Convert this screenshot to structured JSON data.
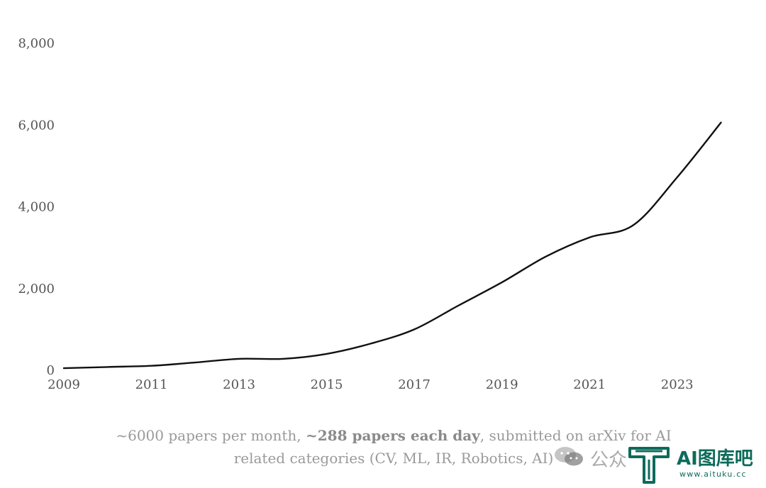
{
  "chart_data": {
    "type": "line",
    "x_ticks": [
      "2009",
      "2011",
      "2013",
      "2015",
      "2017",
      "2019",
      "2021",
      "2023"
    ],
    "y_ticks": [
      "0",
      "2,000",
      "4,000",
      "6,000",
      "8,000"
    ],
    "xlim": [
      2009,
      2024.3
    ],
    "ylim": [
      0,
      8000
    ],
    "grid": false,
    "series": [
      {
        "color": "#111111",
        "points": [
          [
            2009,
            50
          ],
          [
            2010,
            80
          ],
          [
            2011,
            110
          ],
          [
            2012,
            190
          ],
          [
            2013,
            280
          ],
          [
            2014,
            280
          ],
          [
            2015,
            400
          ],
          [
            2016,
            650
          ],
          [
            2017,
            1000
          ],
          [
            2018,
            1580
          ],
          [
            2019,
            2150
          ],
          [
            2020,
            2780
          ],
          [
            2021,
            3250
          ],
          [
            2022,
            3550
          ],
          [
            2023,
            4720
          ],
          [
            2024,
            6060
          ]
        ]
      }
    ]
  },
  "caption": {
    "part1": "~6000 papers per month, ",
    "bold": "~288 papers each day",
    "part2": ", submitted on arXiv for AI related categories (CV, ML, IR, Robotics, AI)"
  },
  "watermark": {
    "text": "公众",
    "brand": "AI图库吧",
    "url": "www.aituku.cc",
    "color": "#0d6b5a"
  }
}
